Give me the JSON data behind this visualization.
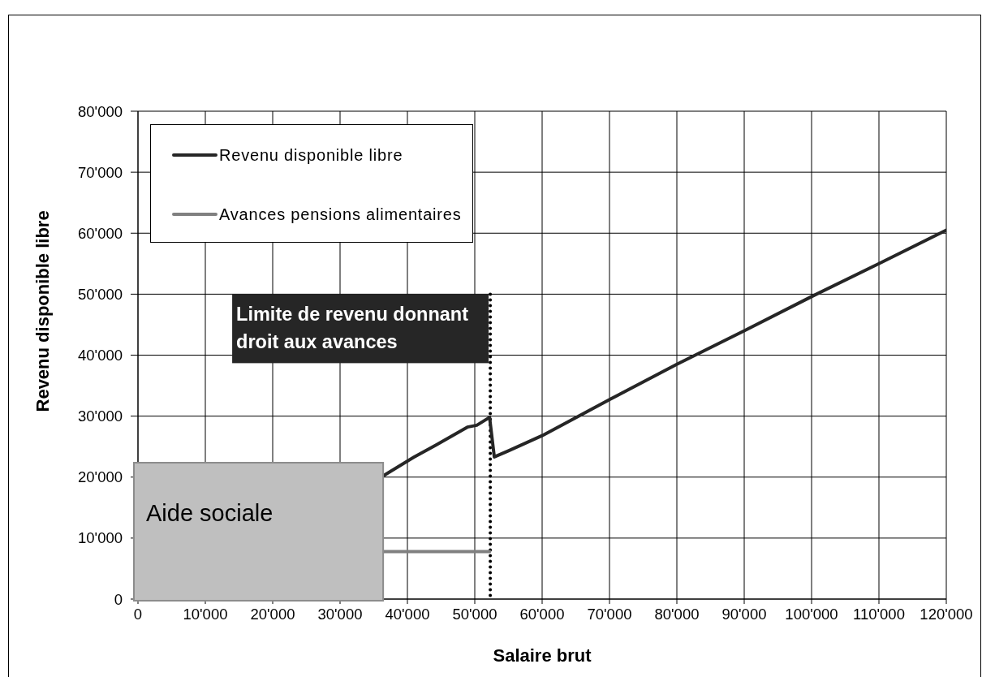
{
  "chart_data": {
    "type": "line",
    "xlabel": "Salaire brut",
    "ylabel": "Revenu disponible libre",
    "series": [
      {
        "name": "Revenu disponible libre",
        "color": "#262626",
        "x": [
          36400,
          41000,
          44300,
          48900,
          50300,
          52200,
          52900,
          55000,
          60000,
          70000,
          80000,
          90000,
          100000,
          110000,
          120000
        ],
        "values": [
          20200,
          23300,
          25300,
          28200,
          28500,
          29800,
          23300,
          24300,
          26800,
          32700,
          38500,
          44000,
          49600,
          55000,
          60500
        ]
      },
      {
        "name": "Avances pensions alimentaires",
        "color": "#808080",
        "x": [
          36400,
          52200
        ],
        "values": [
          7800,
          7800
        ]
      }
    ],
    "xlim": [
      0,
      120000
    ],
    "ylim": [
      0,
      80000
    ],
    "xticks": [
      0,
      {
        "value": 10000,
        "label": "10'000"
      },
      {
        "value": 20000,
        "label": "20'000"
      },
      {
        "value": 30000,
        "label": "30'000"
      },
      {
        "value": 40000,
        "label": "40'000"
      },
      {
        "value": 50000,
        "label": "50'000"
      },
      {
        "value": 60000,
        "label": "60'000"
      },
      {
        "value": 70000,
        "label": "70'000"
      },
      {
        "value": 80000,
        "label": "80'000"
      },
      {
        "value": 90000,
        "label": "90'000"
      },
      {
        "value": 100000,
        "label": "100'000"
      },
      {
        "value": 110000,
        "label": "110'000"
      },
      {
        "value": 120000,
        "label": "120'000"
      }
    ],
    "yticks": [
      0,
      {
        "value": 10000,
        "label": "10'000"
      },
      {
        "value": 20000,
        "label": "20'000"
      },
      {
        "value": 30000,
        "label": "30'000"
      },
      {
        "value": 40000,
        "label": "40'000"
      },
      {
        "value": 50000,
        "label": "50'000"
      },
      {
        "value": 60000,
        "label": "60'000"
      },
      {
        "value": 70000,
        "label": "70'000"
      },
      {
        "value": 80000,
        "label": "80'000"
      }
    ],
    "grid": true,
    "legend": "top left",
    "marker": "none",
    "ref_lines": [
      {
        "axis": "x",
        "value": 52300,
        "label": "Limite de revenu donnant droit aux avances",
        "line_style": "dotted",
        "color": "#000000"
      }
    ],
    "annotations": [
      "Aide sociale"
    ]
  }
}
